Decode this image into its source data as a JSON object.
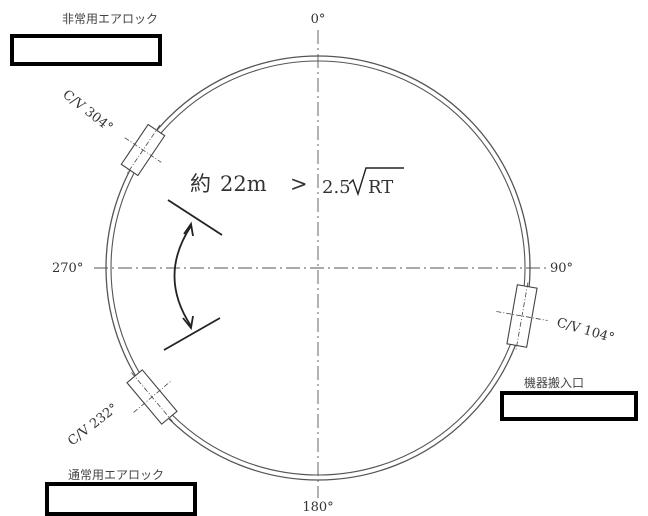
{
  "angles": {
    "top": "0°",
    "right": "90°",
    "bottom": "180°",
    "left": "270°"
  },
  "airlocks": {
    "emergency": "非常用エアロック",
    "normal": "通常用エアロック",
    "equipment_hatch": "機器搬入口"
  },
  "valves": {
    "v304": "C/V 304°",
    "v104": "C/V 104°",
    "v232": "C/V 232°"
  },
  "distance": {
    "prefix": "約",
    "value": "22m",
    "comparator": ">",
    "coefficient": "2.5",
    "radicand": "RT"
  },
  "colors": {
    "line": "#333333",
    "redaction": "#000000"
  }
}
